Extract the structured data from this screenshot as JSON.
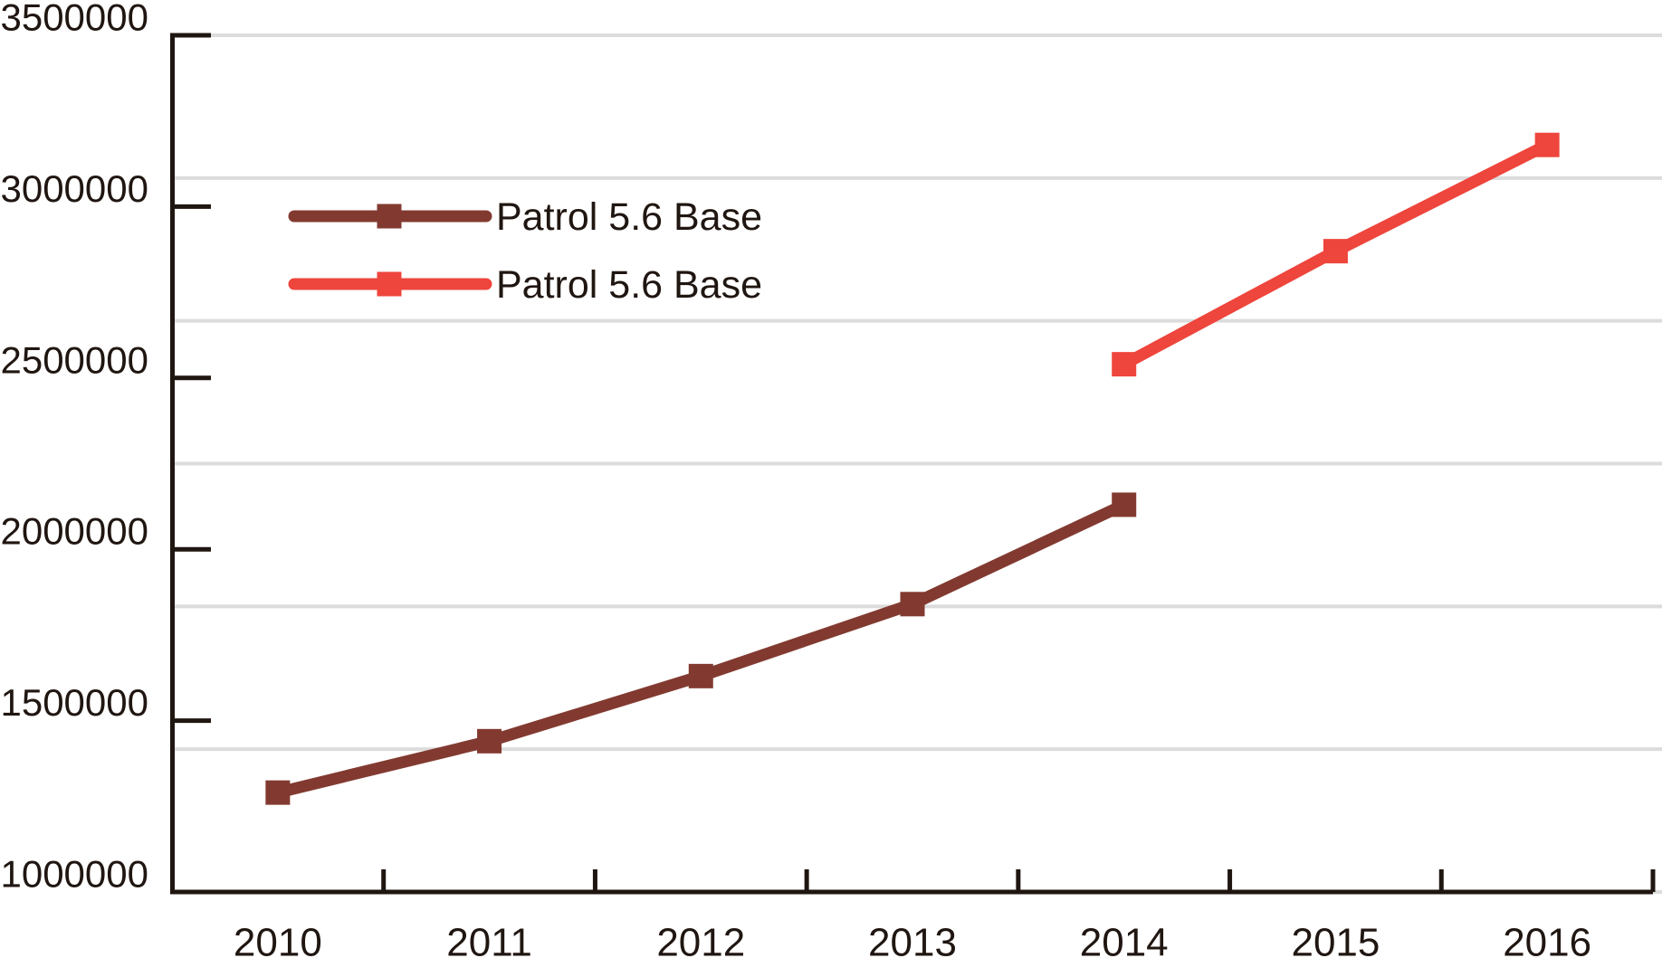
{
  "chart_data": {
    "type": "line",
    "title": "",
    "xlabel": "",
    "ylabel": "",
    "categories": [
      "2010",
      "2011",
      "2012",
      "2013",
      "2014",
      "2015",
      "2016"
    ],
    "series": [
      {
        "name": "Patrol 5.6 Base",
        "color": "#823a30",
        "marker": "square",
        "values": [
          1290000,
          1440000,
          1630000,
          1840000,
          2130000,
          null,
          null
        ]
      },
      {
        "name": "Patrol 5.6 Base",
        "color": "#ee453c",
        "marker": "square",
        "values": [
          null,
          null,
          null,
          null,
          2540000,
          2870000,
          3180000
        ]
      }
    ],
    "ylim": [
      1000000,
      3500000
    ],
    "y_ticks": [
      3500000,
      3000000,
      2500000,
      2000000,
      1500000,
      1000000
    ],
    "y_tick_labels": [
      "3500000",
      "3000000",
      "2500000",
      "2000000",
      "1500000",
      "1000000"
    ],
    "grid": "horizontal",
    "gridline_divisions": 6,
    "legend_position": "inside-top-left",
    "colors": {
      "axis": "#201611",
      "text": "#201611",
      "gridline": "#dcdcdc",
      "background": "#ffffff"
    }
  }
}
